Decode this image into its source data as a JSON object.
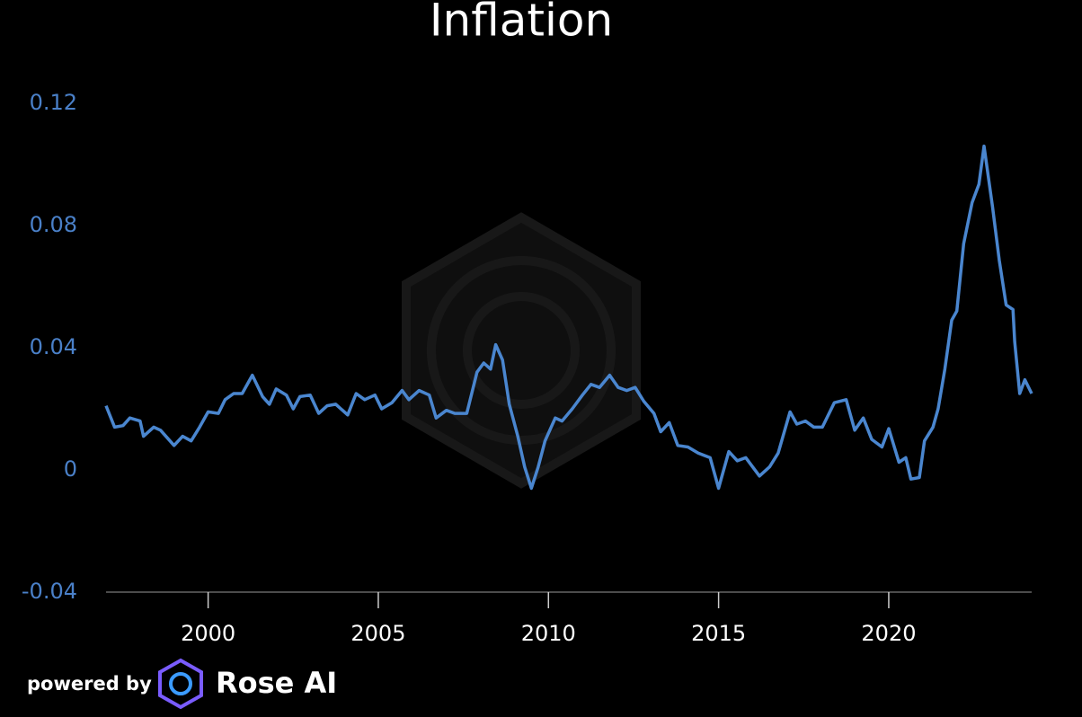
{
  "chart_data": {
    "type": "line",
    "title": "Inflation",
    "x": [
      1997.0,
      1997.25,
      1997.5,
      1997.7,
      1998.0,
      1998.1,
      1998.4,
      1998.6,
      1999.0,
      1999.25,
      1999.5,
      1999.75,
      2000.0,
      2000.3,
      2000.5,
      2000.75,
      2001.0,
      2001.3,
      2001.6,
      2001.8,
      2002.0,
      2002.3,
      2002.5,
      2002.7,
      2003.0,
      2003.25,
      2003.5,
      2003.75,
      2004.1,
      2004.35,
      2004.6,
      2004.9,
      2005.1,
      2005.4,
      2005.7,
      2005.9,
      2006.2,
      2006.5,
      2006.7,
      2007.0,
      2007.25,
      2007.6,
      2007.9,
      2008.1,
      2008.3,
      2008.45,
      2008.65,
      2008.85,
      2009.1,
      2009.3,
      2009.5,
      2009.7,
      2009.9,
      2010.2,
      2010.4,
      2010.7,
      2011.0,
      2011.25,
      2011.5,
      2011.8,
      2012.05,
      2012.3,
      2012.55,
      2012.8,
      2013.1,
      2013.3,
      2013.55,
      2013.8,
      2014.1,
      2014.4,
      2014.75,
      2015.0,
      2015.3,
      2015.55,
      2015.8,
      2016.2,
      2016.5,
      2016.75,
      2017.1,
      2017.3,
      2017.55,
      2017.8,
      2018.05,
      2018.4,
      2018.75,
      2019.0,
      2019.25,
      2019.5,
      2019.8,
      2020.0,
      2020.3,
      2020.5,
      2020.65,
      2020.9,
      2021.05,
      2021.3,
      2021.45,
      2021.65,
      2021.85,
      2022.0,
      2022.2,
      2022.45,
      2022.65,
      2022.8,
      2023.05,
      2023.25,
      2023.45,
      2023.65,
      2023.7,
      2023.85,
      2024.0,
      2024.2
    ],
    "series": [
      {
        "name": "Inflation",
        "color": "#4a86cf",
        "values": [
          0.021,
          0.014,
          0.0145,
          0.017,
          0.016,
          0.011,
          0.014,
          0.013,
          0.008,
          0.011,
          0.0095,
          0.014,
          0.019,
          0.0185,
          0.023,
          0.025,
          0.025,
          0.031,
          0.024,
          0.0215,
          0.0265,
          0.0245,
          0.02,
          0.024,
          0.0245,
          0.0185,
          0.021,
          0.0215,
          0.018,
          0.025,
          0.023,
          0.0245,
          0.02,
          0.022,
          0.026,
          0.023,
          0.026,
          0.0245,
          0.017,
          0.0195,
          0.0185,
          0.0185,
          0.032,
          0.035,
          0.033,
          0.041,
          0.036,
          0.0215,
          0.011,
          0.001,
          -0.006,
          0.001,
          0.0095,
          0.017,
          0.016,
          0.02,
          0.0245,
          0.028,
          0.027,
          0.031,
          0.027,
          0.026,
          0.027,
          0.0225,
          0.0185,
          0.0125,
          0.0155,
          0.008,
          0.0075,
          0.0055,
          0.004,
          -0.006,
          0.006,
          0.003,
          0.004,
          -0.002,
          0.001,
          0.0055,
          0.019,
          0.015,
          0.016,
          0.014,
          0.014,
          0.022,
          0.023,
          0.013,
          0.017,
          0.01,
          0.0075,
          0.0135,
          0.0025,
          0.004,
          -0.003,
          -0.0025,
          0.0095,
          0.014,
          0.02,
          0.033,
          0.049,
          0.052,
          0.074,
          0.0875,
          0.0935,
          0.106,
          0.086,
          0.0685,
          0.054,
          0.0525,
          0.042,
          0.025,
          0.0295,
          0.025
        ]
      }
    ],
    "xlim": [
      1997,
      2024.2
    ],
    "xticks": [
      2000,
      2005,
      2010,
      2015,
      2020
    ],
    "ylim": [
      -0.04,
      0.12
    ],
    "yticks": [
      -0.04,
      0,
      0.04,
      0.08,
      0.12
    ]
  },
  "footer": {
    "powered_by": "powered by",
    "brand": "Rose AI"
  }
}
